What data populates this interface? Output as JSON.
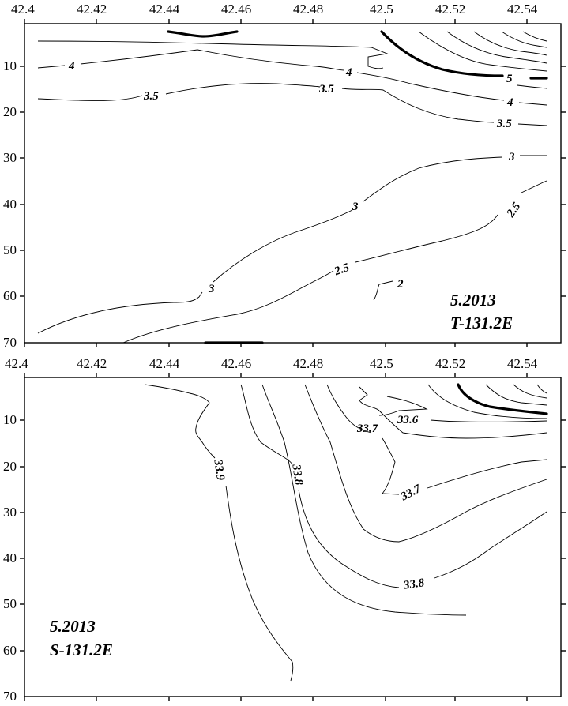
{
  "chart_data": [
    {
      "type": "contour",
      "title": "",
      "xlabel": "",
      "ylabel": "",
      "xlim": [
        42.4,
        42.55
      ],
      "ylim": [
        70,
        0
      ],
      "x_ticks": [
        "42.4",
        "42.42",
        "42.44",
        "42.46",
        "42.48",
        "42.5",
        "42.52",
        "42.54"
      ],
      "y_ticks": [
        "10",
        "20",
        "30",
        "40",
        "50",
        "60",
        "70"
      ],
      "annotation": [
        "5.2013",
        "T-131.2E"
      ],
      "contour_labels": [
        {
          "text": "4",
          "x": 42.413,
          "y": 10
        },
        {
          "text": "4",
          "x": 42.492,
          "y": 11
        },
        {
          "text": "4",
          "x": 42.537,
          "y": 17
        },
        {
          "text": "5",
          "x": 42.537,
          "y": 12
        },
        {
          "text": "3.5",
          "x": 42.436,
          "y": 18
        },
        {
          "text": "3.5",
          "x": 42.484,
          "y": 15
        },
        {
          "text": "3.5",
          "x": 42.535,
          "y": 22
        },
        {
          "text": "3",
          "x": 42.537,
          "y": 30
        },
        {
          "text": "3",
          "x": 42.492,
          "y": 43
        },
        {
          "text": "3",
          "x": 42.453,
          "y": 61
        },
        {
          "text": "2.5",
          "x": 42.539,
          "y": 42
        },
        {
          "text": "2.5",
          "x": 42.492,
          "y": 55
        },
        {
          "text": "2",
          "x": 42.503,
          "y": 60
        }
      ]
    },
    {
      "type": "contour",
      "title": "",
      "xlabel": "",
      "ylabel": "",
      "xlim": [
        42.4,
        42.55
      ],
      "ylim": [
        70,
        0
      ],
      "x_ticks": [
        "42.4",
        "42.42",
        "42.44",
        "42.46",
        "42.48",
        "42.5",
        "42.52",
        "42.54"
      ],
      "y_ticks": [
        "10",
        "20",
        "30",
        "40",
        "50",
        "60",
        "70"
      ],
      "annotation": [
        "5.2013",
        "S-131.2E"
      ],
      "contour_labels": [
        {
          "text": "33.6",
          "x": 42.507,
          "y": 9
        },
        {
          "text": "33.7",
          "x": 42.493,
          "y": 12
        },
        {
          "text": "33.7",
          "x": 42.509,
          "y": 24
        },
        {
          "text": "33.8",
          "x": 42.509,
          "y": 45
        },
        {
          "text": "33.8",
          "x": 42.477,
          "y": 21
        },
        {
          "text": "33.9",
          "x": 42.454,
          "y": 20
        }
      ]
    }
  ]
}
